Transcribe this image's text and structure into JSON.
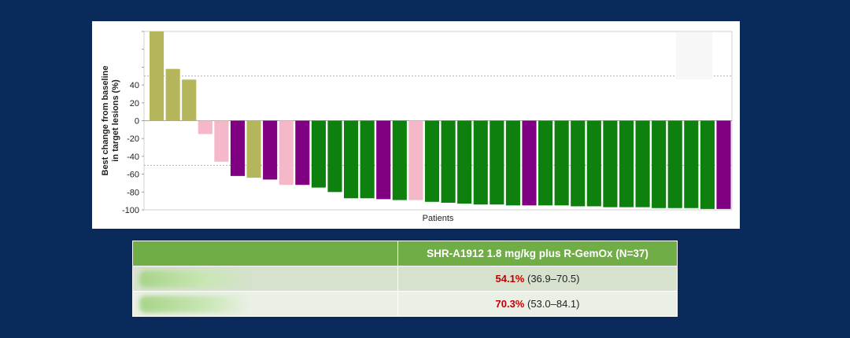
{
  "chart_data": {
    "type": "bar",
    "title": "",
    "xlabel": "Patients",
    "ylabel_lines": [
      "Best change from baseline",
      "in target lesions (%)"
    ],
    "ylim": [
      -100,
      100
    ],
    "yticks": [
      -100,
      -80,
      -60,
      -40,
      -20,
      0,
      20,
      40,
      60,
      80,
      100
    ],
    "ytick_labels": [
      "-100",
      "-80",
      "-60",
      "-40",
      "-20",
      "0",
      "20",
      "40",
      "",
      "",
      ""
    ],
    "reference_lines": [
      50,
      -50
    ],
    "grid": false,
    "legend": "none",
    "colors": {
      "olive": "#b5b55c",
      "pink": "#f5b8c8",
      "purple": "#7f0080",
      "green": "#0e800e"
    },
    "values": [
      100,
      58,
      46,
      -15,
      -46,
      -62,
      -64,
      -66,
      -72,
      -72,
      -75,
      -80,
      -87,
      -87,
      -88,
      -89,
      -89,
      -91,
      -92,
      -93,
      -94,
      -94,
      -95,
      -95,
      -95,
      -95,
      -96,
      -96,
      -97,
      -97,
      -97,
      -98,
      -98,
      -98,
      -99,
      -99
    ],
    "bar_colors": [
      "olive",
      "olive",
      "olive",
      "pink",
      "pink",
      "purple",
      "olive",
      "purple",
      "pink",
      "purple",
      "green",
      "green",
      "green",
      "green",
      "purple",
      "green",
      "pink",
      "green",
      "green",
      "green",
      "green",
      "green",
      "green",
      "purple",
      "green",
      "green",
      "green",
      "green",
      "green",
      "green",
      "green",
      "green",
      "green",
      "green",
      "green",
      "purple"
    ]
  },
  "table": {
    "header": [
      "",
      "SHR-A1912 1.8 mg/kg plus R-GemOx (N=37)"
    ],
    "rows": [
      {
        "highlight": "54.1%",
        "ci": "(36.9–70.5)"
      },
      {
        "highlight": "70.3%",
        "ci": "(53.0–84.1)"
      }
    ]
  }
}
